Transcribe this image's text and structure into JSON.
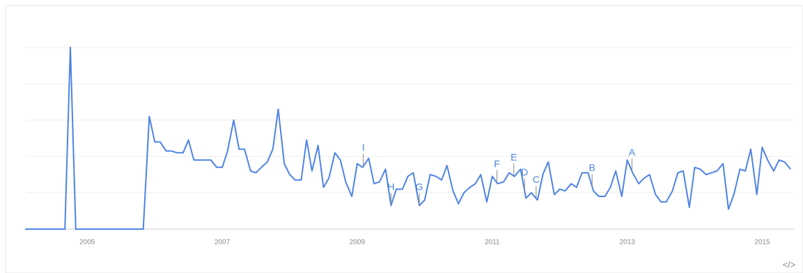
{
  "chart_data": {
    "type": "line",
    "x": [
      2004.08,
      2004.17,
      2004.25,
      2004.33,
      2004.42,
      2004.5,
      2004.58,
      2004.67,
      2004.75,
      2004.83,
      2004.92,
      2005,
      2005.08,
      2005.17,
      2005.25,
      2005.33,
      2005.42,
      2005.5,
      2005.58,
      2005.67,
      2005.75,
      2005.83,
      2005.92,
      2006,
      2006.08,
      2006.17,
      2006.25,
      2006.33,
      2006.42,
      2006.5,
      2006.58,
      2006.67,
      2006.75,
      2006.83,
      2006.92,
      2007,
      2007.08,
      2007.17,
      2007.25,
      2007.33,
      2007.42,
      2007.5,
      2007.58,
      2007.67,
      2007.75,
      2007.83,
      2007.92,
      2008,
      2008.08,
      2008.17,
      2008.25,
      2008.33,
      2008.42,
      2008.5,
      2008.58,
      2008.67,
      2008.75,
      2008.83,
      2008.92,
      2009,
      2009.08,
      2009.17,
      2009.25,
      2009.33,
      2009.42,
      2009.5,
      2009.58,
      2009.67,
      2009.75,
      2009.83,
      2009.92,
      2010,
      2010.08,
      2010.17,
      2010.25,
      2010.33,
      2010.42,
      2010.5,
      2010.58,
      2010.67,
      2010.75,
      2010.83,
      2010.92,
      2011,
      2011.08,
      2011.17,
      2011.25,
      2011.33,
      2011.42,
      2011.5,
      2011.58,
      2011.67,
      2011.75,
      2011.83,
      2011.92,
      2012,
      2012.08,
      2012.17,
      2012.25,
      2012.33,
      2012.42,
      2012.5,
      2012.58,
      2012.67,
      2012.75,
      2012.83,
      2012.92,
      2013,
      2013.08,
      2013.17,
      2013.25,
      2013.33,
      2013.42,
      2013.5,
      2013.58,
      2013.67,
      2013.75,
      2013.83,
      2013.92,
      2014,
      2014.08,
      2014.17,
      2014.25,
      2014.33,
      2014.42,
      2014.5,
      2014.58,
      2014.67,
      2014.75,
      2014.83,
      2014.92,
      2015,
      2015.08,
      2015.17,
      2015.25,
      2015.33,
      2015.42
    ],
    "values": [
      0,
      0,
      0,
      0,
      0,
      0,
      0,
      0,
      100,
      0,
      0,
      0,
      0,
      0,
      0,
      0,
      0,
      0,
      0,
      0,
      0,
      0,
      62,
      48,
      48,
      43,
      43,
      42,
      42,
      49,
      38,
      38,
      38,
      38,
      34,
      34,
      43,
      60,
      44,
      44,
      32,
      31,
      34,
      37,
      44,
      66,
      36,
      30,
      27,
      27,
      49,
      32,
      46,
      23,
      28,
      42,
      38,
      26,
      18,
      36,
      34,
      39,
      25,
      26,
      33,
      13,
      22,
      22,
      29,
      31,
      13,
      16,
      30,
      29,
      27,
      35,
      21,
      14,
      20,
      23,
      25,
      30,
      15,
      29,
      25,
      26,
      31,
      29,
      33,
      17,
      20,
      16,
      30,
      37,
      19,
      22,
      21,
      25,
      23,
      31,
      31,
      21,
      18,
      18,
      23,
      32,
      18,
      38,
      31,
      25,
      28,
      30,
      19,
      15,
      15,
      21,
      31,
      32,
      12,
      34,
      33,
      30,
      31,
      32,
      36,
      11,
      19,
      33,
      32,
      44,
      19,
      45,
      38,
      32,
      38,
      37,
      33
    ],
    "color": "#4d83e4",
    "xlim": [
      2004.1,
      2015.47
    ],
    "xticks": [
      2005,
      2007,
      2009,
      2011,
      2013,
      2015
    ],
    "ylim": [
      0,
      100
    ],
    "yticks": [
      0,
      20,
      40,
      60,
      80,
      100
    ],
    "grid": true,
    "annotations": [
      {
        "label": "A",
        "x": 2013.07
      },
      {
        "label": "B",
        "x": 2012.48
      },
      {
        "label": "C",
        "x": 2011.65
      },
      {
        "label": "D",
        "x": 2011.48
      },
      {
        "label": "E",
        "x": 2011.32
      },
      {
        "label": "F",
        "x": 2011.07
      },
      {
        "label": "G",
        "x": 2009.92
      },
      {
        "label": "H",
        "x": 2009.5
      },
      {
        "label": "I",
        "x": 2009.09
      }
    ],
    "embed_icon": "</>"
  }
}
